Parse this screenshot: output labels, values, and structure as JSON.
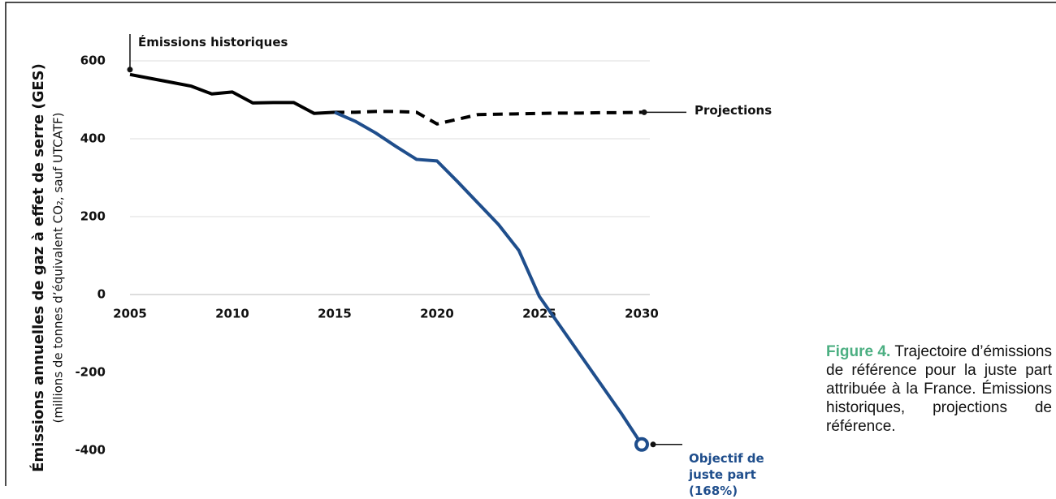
{
  "chart_data": {
    "type": "line",
    "ylabel": "Émissions annuelles de gaz à effet de serre (GES)",
    "ylabel_sub": "(millions de tonnes d’équivalent CO₂, sauf UTCATF)",
    "x": [
      2005,
      2006,
      2007,
      2008,
      2009,
      2010,
      2011,
      2012,
      2013,
      2014,
      2015,
      2016,
      2017,
      2018,
      2019,
      2020,
      2021,
      2022,
      2023,
      2024,
      2025,
      2026,
      2027,
      2028,
      2029,
      2030
    ],
    "series": [
      {
        "name": "Émissions historiques",
        "color": "#000000",
        "dashed": false,
        "values": [
          565,
          555,
          545,
          535,
          515,
          520,
          492,
          493,
          493,
          465,
          468,
          null,
          null,
          null,
          null,
          null,
          null,
          null,
          null,
          null,
          null,
          null,
          null,
          null,
          null,
          null
        ]
      },
      {
        "name": "Projections",
        "color": "#000000",
        "dashed": true,
        "values": [
          null,
          null,
          null,
          null,
          null,
          null,
          null,
          null,
          null,
          null,
          468,
          468,
          470,
          470,
          468,
          438,
          450,
          462,
          463,
          464,
          465,
          466,
          466,
          467,
          467,
          468
        ]
      },
      {
        "name": "Objectif de juste part (168%)",
        "color": "#1f4e8c",
        "dashed": false,
        "values": [
          null,
          null,
          null,
          null,
          null,
          null,
          null,
          null,
          null,
          null,
          468,
          445,
          415,
          380,
          347,
          343,
          290,
          235,
          180,
          113,
          -5,
          -80,
          -155,
          -230,
          -305,
          -385
        ]
      }
    ],
    "xlim": [
      2005,
      2030
    ],
    "xticks": [
      2005,
      2010,
      2015,
      2020,
      2025,
      2030
    ],
    "ylim": [
      -400,
      600
    ],
    "yticks": [
      600,
      400,
      200,
      0,
      -200,
      -400
    ],
    "grid": true,
    "caption": {
      "label": "Figure 4.",
      "text": "Trajectoire d’émissions de référence pour la juste part attribuée à la France. Émissions historiques, projections de référence."
    }
  }
}
